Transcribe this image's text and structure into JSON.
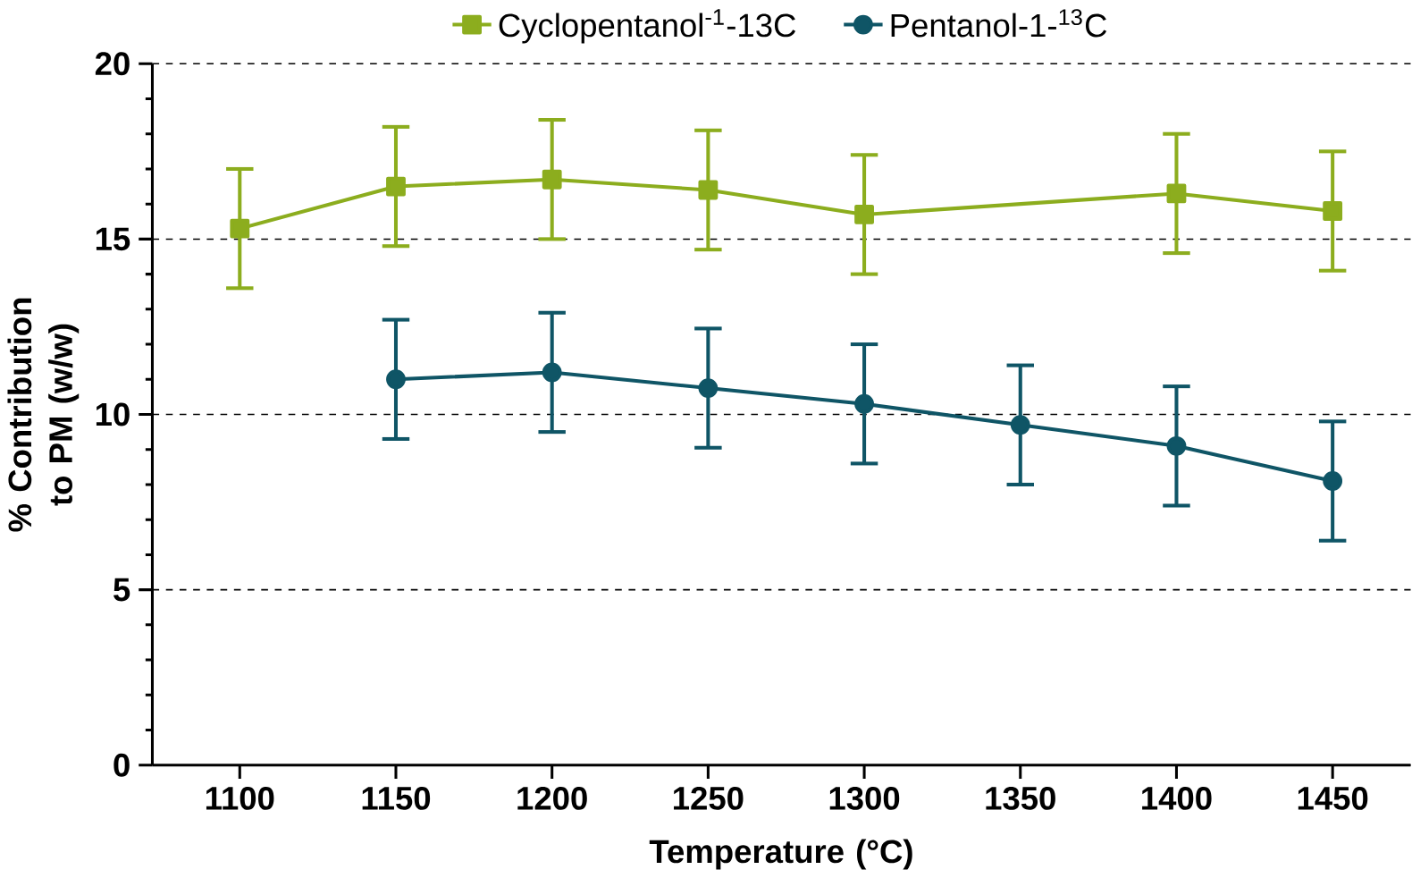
{
  "chart_data": {
    "type": "line",
    "xlabel": "Temperature (°C)",
    "ylabel": "% Contribution to PM (w/w)",
    "xlim": [
      1072,
      1475
    ],
    "ylim": [
      0,
      20
    ],
    "xticks": [
      1100,
      1150,
      1200,
      1250,
      1300,
      1350,
      1400,
      1450
    ],
    "yticks": [
      0,
      5,
      10,
      15,
      20
    ],
    "grid": "y",
    "legend": "top",
    "series": [
      {
        "name": "Cyclopentanol$^{-1}$-13C",
        "color": "#8cad1e",
        "marker": "square",
        "x": [
          1100,
          1150,
          1200,
          1250,
          1300,
          1400,
          1450
        ],
        "values": [
          15.3,
          16.5,
          16.7,
          16.4,
          15.7,
          16.3,
          15.8
        ],
        "errors": [
          1.7,
          1.7,
          1.7,
          1.7,
          1.7,
          1.7,
          1.7
        ]
      },
      {
        "name": "Pentanol-1-$^{13}$C",
        "color": "#0f5566",
        "marker": "circle",
        "x": [
          1150,
          1200,
          1250,
          1300,
          1350,
          1400,
          1450
        ],
        "values": [
          11.0,
          11.2,
          10.75,
          10.3,
          9.7,
          9.1,
          8.1
        ],
        "errors": [
          1.7,
          1.7,
          1.7,
          1.7,
          1.7,
          1.7,
          1.7
        ]
      }
    ]
  }
}
